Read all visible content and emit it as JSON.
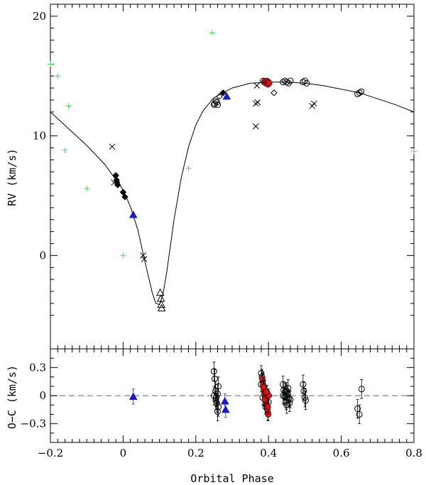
{
  "chart_data": [
    {
      "id": "rv-panel",
      "type": "scatter",
      "title": "",
      "xlabel": "",
      "ylabel": "RV  (km/s)",
      "xlim": [
        -0.2,
        0.8
      ],
      "ylim": [
        -7.8,
        21
      ],
      "yticks": [
        0,
        10,
        20
      ],
      "ytick_labels": [
        "0",
        "10",
        "20"
      ],
      "model_curve": {
        "name": "orbit fit",
        "x": [
          -0.2,
          -0.15,
          -0.1,
          -0.05,
          0.0,
          0.02,
          0.04,
          0.06,
          0.08,
          0.09,
          0.1,
          0.11,
          0.12,
          0.13,
          0.14,
          0.16,
          0.18,
          0.2,
          0.22,
          0.25,
          0.3,
          0.35,
          0.4,
          0.45,
          0.5,
          0.55,
          0.6,
          0.65,
          0.7,
          0.75,
          0.8
        ],
        "y": [
          12.0,
          10.6,
          9.2,
          7.6,
          5.5,
          4.1,
          2.2,
          -0.5,
          -3.1,
          -4.0,
          -4.1,
          -3.2,
          -1.4,
          0.8,
          3.0,
          6.5,
          9.1,
          10.9,
          12.1,
          13.2,
          14.0,
          14.4,
          14.5,
          14.5,
          14.4,
          14.2,
          13.9,
          13.6,
          13.1,
          12.6,
          12.0
        ]
      },
      "series": [
        {
          "name": "green plus",
          "marker": "plus",
          "color": "#44dd44",
          "x": [
            -0.2,
            -0.18,
            -0.15,
            -0.16,
            -0.1,
            0.0,
            0.18,
            0.245,
            0.8
          ],
          "y": [
            16.0,
            15.0,
            12.5,
            8.8,
            5.6,
            0.0,
            7.3,
            18.6,
            8.7
          ]
        },
        {
          "name": "crosses",
          "marker": "x",
          "color": "#000000",
          "x": [
            -0.03,
            -0.025,
            0.055,
            0.058,
            0.365,
            0.37,
            0.365,
            0.368,
            0.52,
            0.525
          ],
          "y": [
            9.1,
            6.1,
            0.0,
            -0.3,
            12.7,
            12.8,
            10.8,
            14.2,
            12.5,
            12.7
          ]
        },
        {
          "name": "filled diamonds",
          "marker": "diamond-filled",
          "color": "#000000",
          "x": [
            -0.02,
            -0.018,
            -0.017,
            -0.015,
            0.0,
            0.005,
            0.275
          ],
          "y": [
            6.7,
            6.3,
            6.1,
            5.9,
            5.3,
            4.9,
            13.6
          ]
        },
        {
          "name": "open diamonds",
          "marker": "diamond-open",
          "color": "#000000",
          "x": [
            0.265,
            0.4,
            0.415
          ],
          "y": [
            13.3,
            14.4,
            13.6
          ]
        },
        {
          "name": "open triangles",
          "marker": "triangle-open",
          "color": "#000000",
          "x": [
            0.102,
            0.104,
            0.105,
            0.106
          ],
          "y": [
            -3.1,
            -3.6,
            -4.1,
            -4.4
          ]
        },
        {
          "name": "blue triangles",
          "marker": "triangle-filled",
          "color": "#1a1acc",
          "x": [
            0.028,
            0.285
          ],
          "y": [
            3.4,
            13.3
          ]
        },
        {
          "name": "open circles",
          "marker": "circle-open",
          "color": "#000000",
          "x": [
            0.25,
            0.252,
            0.255,
            0.258,
            0.26,
            0.385,
            0.39,
            0.395,
            0.44,
            0.445,
            0.45,
            0.455,
            0.46,
            0.495,
            0.5,
            0.505,
            0.645,
            0.65,
            0.655
          ],
          "y": [
            12.6,
            12.7,
            12.9,
            12.8,
            12.6,
            14.6,
            14.5,
            14.4,
            14.5,
            14.6,
            14.5,
            14.4,
            14.6,
            14.5,
            14.6,
            14.4,
            13.5,
            13.6,
            13.7
          ]
        },
        {
          "name": "red circles",
          "marker": "circle-red",
          "color": "#dd1111",
          "x": [
            0.388,
            0.39,
            0.392,
            0.394,
            0.396,
            0.398,
            0.4,
            0.402
          ],
          "y": [
            14.5,
            14.6,
            14.4,
            14.5,
            14.6,
            14.3,
            14.5,
            14.4
          ]
        }
      ]
    },
    {
      "id": "residual-panel",
      "type": "scatter",
      "title": "",
      "xlabel": "Orbital Phase",
      "ylabel": "O−C  (km/s)",
      "xlim": [
        -0.2,
        0.8
      ],
      "ylim": [
        -0.5,
        0.5
      ],
      "xticks": [
        -0.2,
        0,
        0.2,
        0.4,
        0.6,
        0.8
      ],
      "xtick_labels": [
        "−0.2",
        "0",
        "0.2",
        "0.4",
        "0.6",
        "0.8"
      ],
      "yticks": [
        -0.3,
        0,
        0.3
      ],
      "ytick_labels": [
        "−0.3",
        "0",
        "0.3"
      ],
      "zero_line": {
        "y": 0,
        "style": "dashed",
        "color": "#999999"
      },
      "series": [
        {
          "name": "blue triangles",
          "marker": "triangle-filled",
          "color": "#1a1acc",
          "x": [
            0.028,
            0.28,
            0.282
          ],
          "y": [
            -0.01,
            -0.06,
            -0.15
          ],
          "err": [
            0.08,
            0.08,
            0.08
          ]
        },
        {
          "name": "open circles",
          "marker": "circle-open",
          "color": "#000000",
          "x": [
            0.25,
            0.252,
            0.254,
            0.256,
            0.258,
            0.26,
            0.262,
            0.25,
            0.255,
            0.26,
            0.262,
            0.44,
            0.442,
            0.444,
            0.446,
            0.448,
            0.45,
            0.452,
            0.454,
            0.456,
            0.458,
            0.44,
            0.45,
            0.46,
            0.495,
            0.497,
            0.5,
            0.502,
            0.645,
            0.65,
            0.656
          ],
          "y": [
            0.26,
            0.18,
            0.05,
            -0.02,
            -0.08,
            -0.17,
            0.1,
            0.0,
            -0.05,
            0.02,
            -0.12,
            0.12,
            0.06,
            -0.01,
            0.04,
            -0.06,
            -0.1,
            0.02,
            0.08,
            -0.03,
            -0.08,
            0.0,
            0.05,
            -0.04,
            0.12,
            0.05,
            -0.02,
            -0.05,
            -0.14,
            -0.2,
            0.07
          ],
          "err": [
            0.1,
            0.1,
            0.1,
            0.1,
            0.1,
            0.1,
            0.1,
            0.1,
            0.1,
            0.1,
            0.1,
            0.09,
            0.09,
            0.09,
            0.09,
            0.09,
            0.09,
            0.09,
            0.09,
            0.09,
            0.09,
            0.09,
            0.09,
            0.09,
            0.1,
            0.1,
            0.1,
            0.1,
            0.1,
            0.1,
            0.1
          ]
        },
        {
          "name": "black dense",
          "marker": "circle-open",
          "color": "#000000",
          "x": [
            0.38,
            0.382,
            0.384,
            0.386,
            0.388,
            0.39,
            0.392,
            0.394,
            0.396,
            0.398,
            0.38,
            0.384,
            0.388,
            0.392,
            0.396,
            0.4
          ],
          "y": [
            0.24,
            0.2,
            0.16,
            0.1,
            0.05,
            0.0,
            -0.05,
            -0.1,
            -0.14,
            -0.18,
            0.12,
            -0.02,
            0.08,
            -0.12,
            0.03,
            -0.07
          ],
          "err": [
            0.08,
            0.08,
            0.08,
            0.08,
            0.08,
            0.08,
            0.08,
            0.08,
            0.08,
            0.08,
            0.08,
            0.08,
            0.08,
            0.08,
            0.08,
            0.08
          ]
        },
        {
          "name": "red circles",
          "marker": "circle-red",
          "color": "#dd1111",
          "x": [
            0.383,
            0.385,
            0.387,
            0.389,
            0.391,
            0.393,
            0.395,
            0.397,
            0.399,
            0.401,
            0.386,
            0.39,
            0.394,
            0.398
          ],
          "y": [
            0.18,
            0.12,
            0.06,
            0.02,
            -0.02,
            -0.06,
            -0.1,
            -0.15,
            -0.2,
            0.0,
            0.09,
            -0.04,
            0.04,
            -0.12
          ],
          "err": [
            0.07,
            0.07,
            0.07,
            0.07,
            0.07,
            0.07,
            0.07,
            0.07,
            0.07,
            0.07,
            0.07,
            0.07,
            0.07,
            0.07
          ]
        }
      ]
    }
  ]
}
